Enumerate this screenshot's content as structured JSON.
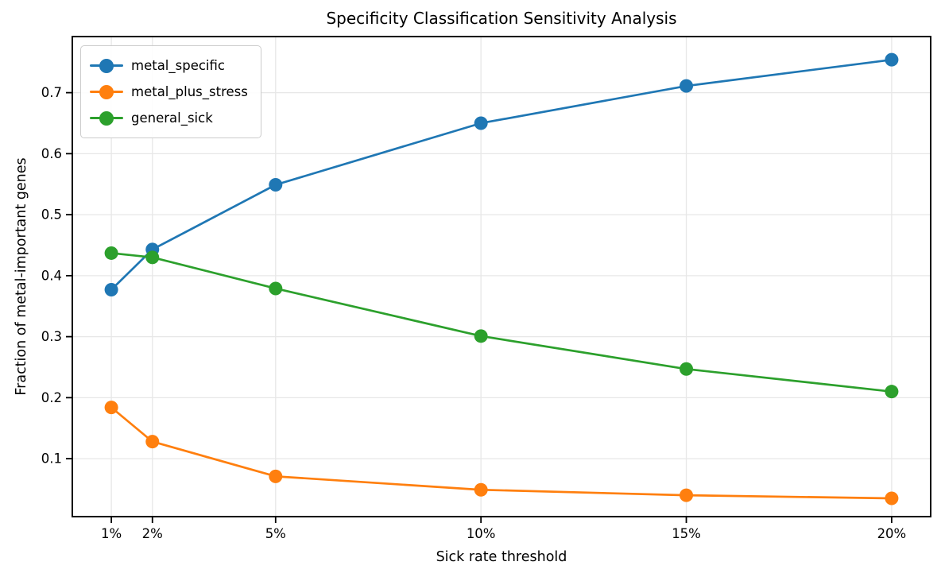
{
  "chart_data": {
    "type": "line",
    "title": "Specificity Classification Sensitivity Analysis",
    "xlabel": "Sick rate threshold",
    "ylabel": "Fraction of metal-important genes",
    "x": [
      1,
      2,
      5,
      10,
      15,
      20
    ],
    "x_tick_labels": [
      "1%",
      "2%",
      "5%",
      "10%",
      "15%",
      "20%"
    ],
    "y_ticks": [
      0.1,
      0.2,
      0.3,
      0.4,
      0.5,
      0.6,
      0.7
    ],
    "y_tick_labels": [
      "0.1",
      "0.2",
      "0.3",
      "0.4",
      "0.5",
      "0.6",
      "0.7"
    ],
    "xlim": [
      0.05,
      20.95
    ],
    "ylim": [
      0.005,
      0.792
    ],
    "grid": true,
    "grid_color": "#e7e7e7",
    "spine_color": "#000000",
    "legend_position": "upper-left",
    "series": [
      {
        "name": "metal_specific",
        "color": "#1f77b4",
        "values": [
          0.377,
          0.443,
          0.549,
          0.65,
          0.711,
          0.754
        ]
      },
      {
        "name": "metal_plus_stress",
        "color": "#ff7f0e",
        "values": [
          0.184,
          0.128,
          0.071,
          0.049,
          0.04,
          0.035
        ]
      },
      {
        "name": "general_sick",
        "color": "#2ca02c",
        "values": [
          0.437,
          0.43,
          0.379,
          0.301,
          0.247,
          0.21
        ]
      }
    ]
  }
}
